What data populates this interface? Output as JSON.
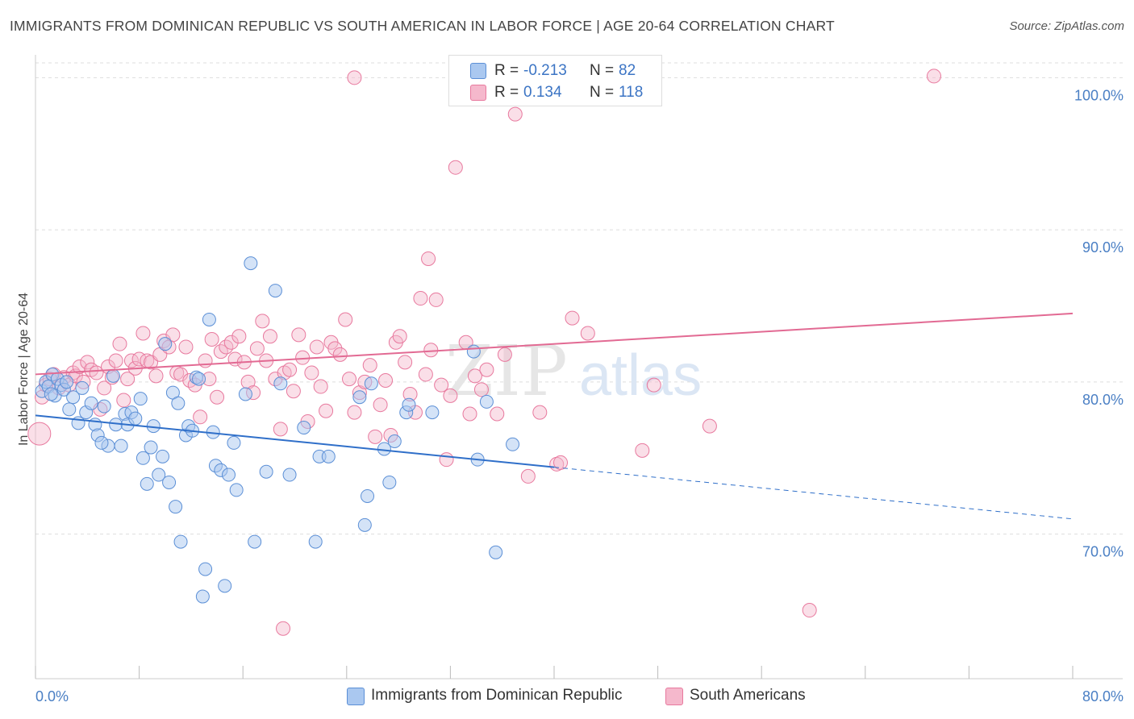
{
  "title": "IMMIGRANTS FROM DOMINICAN REPUBLIC VS SOUTH AMERICAN IN LABOR FORCE | AGE 20-64 CORRELATION CHART",
  "source": "Source: ZipAtlas.com",
  "watermark": {
    "zip": "ZIP",
    "atlas": "atlas"
  },
  "legend": {
    "rows": [
      {
        "r_label": "R =",
        "r_value": "-0.213",
        "n_label": "N =",
        "n_value": "82"
      },
      {
        "r_label": "R =",
        "r_value": "0.134",
        "n_label": "N =",
        "n_value": "118"
      }
    ]
  },
  "colors": {
    "blue_fill": "#aac8f0",
    "blue_stroke": "#5b8fd6",
    "blue_line": "#2f6fc9",
    "pink_fill": "#f5b8cc",
    "pink_stroke": "#e8799e",
    "pink_line": "#e26a93",
    "tick": "#4a7fc4",
    "grid": "#dddddd"
  },
  "chart_data": {
    "type": "scatter",
    "title": "IMMIGRANTS FROM DOMINICAN REPUBLIC VS SOUTH AMERICAN IN LABOR FORCE | AGE 20-64 CORRELATION CHART",
    "xlabel": "",
    "ylabel": "In Labor Force | Age 20-64",
    "xlim": [
      0,
      80
    ],
    "ylim": [
      60.5,
      101.5
    ],
    "x_tick_labels": [
      "0.0%",
      "80.0%"
    ],
    "y_ticks": [
      70,
      80,
      90,
      100
    ],
    "y_tick_labels": [
      "70.0%",
      "80.0%",
      "90.0%",
      "100.0%"
    ],
    "grid": true,
    "legend_position": "top-center",
    "series": [
      {
        "name": "Immigrants from Dominican Republic",
        "r": -0.213,
        "n": 82,
        "trend": {
          "x": [
            0,
            40
          ],
          "y": [
            77.8,
            74.4
          ],
          "dashed_to": [
            80,
            71.0
          ]
        },
        "points": [
          [
            0.5,
            79.4
          ],
          [
            0.8,
            80.0
          ],
          [
            1.0,
            79.7
          ],
          [
            1.3,
            80.5
          ],
          [
            1.5,
            79.1
          ],
          [
            1.7,
            80.2
          ],
          [
            2.0,
            79.8
          ],
          [
            2.2,
            79.5
          ],
          [
            2.6,
            78.2
          ],
          [
            2.9,
            79.0
          ],
          [
            3.3,
            77.3
          ],
          [
            3.6,
            79.6
          ],
          [
            3.9,
            78.0
          ],
          [
            4.3,
            78.6
          ],
          [
            4.6,
            77.2
          ],
          [
            4.8,
            76.5
          ],
          [
            5.3,
            78.4
          ],
          [
            5.6,
            75.8
          ],
          [
            6.0,
            80.4
          ],
          [
            6.2,
            77.2
          ],
          [
            6.6,
            75.8
          ],
          [
            6.9,
            77.9
          ],
          [
            7.1,
            77.2
          ],
          [
            7.4,
            78.0
          ],
          [
            7.7,
            77.6
          ],
          [
            8.1,
            78.9
          ],
          [
            8.3,
            75.0
          ],
          [
            8.6,
            73.3
          ],
          [
            8.9,
            75.7
          ],
          [
            9.1,
            77.1
          ],
          [
            9.5,
            73.9
          ],
          [
            9.8,
            75.1
          ],
          [
            10.0,
            82.5
          ],
          [
            10.3,
            73.4
          ],
          [
            10.6,
            79.3
          ],
          [
            10.8,
            71.8
          ],
          [
            11.0,
            78.6
          ],
          [
            11.2,
            69.5
          ],
          [
            11.6,
            76.5
          ],
          [
            11.8,
            77.1
          ],
          [
            12.1,
            76.8
          ],
          [
            12.4,
            80.3
          ],
          [
            12.6,
            80.2
          ],
          [
            12.9,
            65.9
          ],
          [
            13.1,
            67.7
          ],
          [
            13.4,
            84.1
          ],
          [
            13.7,
            76.7
          ],
          [
            13.9,
            74.5
          ],
          [
            14.3,
            74.2
          ],
          [
            14.6,
            66.6
          ],
          [
            14.9,
            73.9
          ],
          [
            15.3,
            76.0
          ],
          [
            15.5,
            72.9
          ],
          [
            16.2,
            79.2
          ],
          [
            16.6,
            87.8
          ],
          [
            16.9,
            69.5
          ],
          [
            17.8,
            74.1
          ],
          [
            18.5,
            86.0
          ],
          [
            18.9,
            79.9
          ],
          [
            19.6,
            73.9
          ],
          [
            20.7,
            77.0
          ],
          [
            21.6,
            69.5
          ],
          [
            21.9,
            75.1
          ],
          [
            22.6,
            75.1
          ],
          [
            25.0,
            79.0
          ],
          [
            25.4,
            70.6
          ],
          [
            25.6,
            72.5
          ],
          [
            25.9,
            79.9
          ],
          [
            26.9,
            75.6
          ],
          [
            27.3,
            73.4
          ],
          [
            27.7,
            76.1
          ],
          [
            28.6,
            78.0
          ],
          [
            28.8,
            78.5
          ],
          [
            30.6,
            78.0
          ],
          [
            33.8,
            82.0
          ],
          [
            34.1,
            74.9
          ],
          [
            34.8,
            78.7
          ],
          [
            35.5,
            68.8
          ],
          [
            36.8,
            75.9
          ],
          [
            1.2,
            79.2
          ],
          [
            2.4,
            80.0
          ],
          [
            5.1,
            76.0
          ]
        ]
      },
      {
        "name": "South Americans",
        "r": 0.134,
        "n": 118,
        "trend": {
          "x": [
            0,
            80
          ],
          "y": [
            80.5,
            84.5
          ]
        },
        "points": [
          [
            0.3,
            76.6
          ],
          [
            0.5,
            79.0
          ],
          [
            0.8,
            79.8
          ],
          [
            1.1,
            80.2
          ],
          [
            1.4,
            80.5
          ],
          [
            1.8,
            79.6
          ],
          [
            2.2,
            80.3
          ],
          [
            2.6,
            79.8
          ],
          [
            2.9,
            80.6
          ],
          [
            3.1,
            80.4
          ],
          [
            3.4,
            81.0
          ],
          [
            3.7,
            80.0
          ],
          [
            4.0,
            81.3
          ],
          [
            4.3,
            80.8
          ],
          [
            4.7,
            80.6
          ],
          [
            5.0,
            78.2
          ],
          [
            5.3,
            79.6
          ],
          [
            5.6,
            81.0
          ],
          [
            5.9,
            80.3
          ],
          [
            6.2,
            81.4
          ],
          [
            6.5,
            82.5
          ],
          [
            6.8,
            78.8
          ],
          [
            7.1,
            80.2
          ],
          [
            7.4,
            81.4
          ],
          [
            7.7,
            80.9
          ],
          [
            8.0,
            81.5
          ],
          [
            8.3,
            83.2
          ],
          [
            8.6,
            81.4
          ],
          [
            8.9,
            81.3
          ],
          [
            9.3,
            80.4
          ],
          [
            9.6,
            81.8
          ],
          [
            9.9,
            82.7
          ],
          [
            10.3,
            82.3
          ],
          [
            10.6,
            83.1
          ],
          [
            10.9,
            80.6
          ],
          [
            11.2,
            80.5
          ],
          [
            11.6,
            82.3
          ],
          [
            11.9,
            80.1
          ],
          [
            12.3,
            79.8
          ],
          [
            12.7,
            77.7
          ],
          [
            13.1,
            81.4
          ],
          [
            13.4,
            80.2
          ],
          [
            13.6,
            82.8
          ],
          [
            14.0,
            79.0
          ],
          [
            14.3,
            82.0
          ],
          [
            14.7,
            82.3
          ],
          [
            15.1,
            82.6
          ],
          [
            15.4,
            81.5
          ],
          [
            15.7,
            83.0
          ],
          [
            16.1,
            81.3
          ],
          [
            16.4,
            80.0
          ],
          [
            16.8,
            79.3
          ],
          [
            17.1,
            82.2
          ],
          [
            17.5,
            84.0
          ],
          [
            17.8,
            81.4
          ],
          [
            18.1,
            83.0
          ],
          [
            18.5,
            80.2
          ],
          [
            18.9,
            76.9
          ],
          [
            19.2,
            80.6
          ],
          [
            19.6,
            80.8
          ],
          [
            19.9,
            79.4
          ],
          [
            20.3,
            83.1
          ],
          [
            20.6,
            81.6
          ],
          [
            21.0,
            77.4
          ],
          [
            21.3,
            80.6
          ],
          [
            21.7,
            82.3
          ],
          [
            22.0,
            79.7
          ],
          [
            22.4,
            78.1
          ],
          [
            22.8,
            82.6
          ],
          [
            23.1,
            82.2
          ],
          [
            23.5,
            81.8
          ],
          [
            23.9,
            84.1
          ],
          [
            24.2,
            80.2
          ],
          [
            24.6,
            78.0
          ],
          [
            25.0,
            79.3
          ],
          [
            25.4,
            80.0
          ],
          [
            25.8,
            81.1
          ],
          [
            26.2,
            76.4
          ],
          [
            26.6,
            78.5
          ],
          [
            27.0,
            80.1
          ],
          [
            27.4,
            76.5
          ],
          [
            27.8,
            82.6
          ],
          [
            28.1,
            83.0
          ],
          [
            28.5,
            81.3
          ],
          [
            28.9,
            79.2
          ],
          [
            29.3,
            78.0
          ],
          [
            29.7,
            85.5
          ],
          [
            30.1,
            80.5
          ],
          [
            30.5,
            82.1
          ],
          [
            30.9,
            85.4
          ],
          [
            31.3,
            79.8
          ],
          [
            31.7,
            74.9
          ],
          [
            32.0,
            79.1
          ],
          [
            32.4,
            94.1
          ],
          [
            32.8,
            100.0
          ],
          [
            33.2,
            82.6
          ],
          [
            33.5,
            77.9
          ],
          [
            33.9,
            80.4
          ],
          [
            34.4,
            79.5
          ],
          [
            34.8,
            80.8
          ],
          [
            35.6,
            77.9
          ],
          [
            36.2,
            81.8
          ],
          [
            37.0,
            97.6
          ],
          [
            38.0,
            73.8
          ],
          [
            38.9,
            78.0
          ],
          [
            40.2,
            74.6
          ],
          [
            40.5,
            74.7
          ],
          [
            41.4,
            84.2
          ],
          [
            42.6,
            83.2
          ],
          [
            46.8,
            75.5
          ],
          [
            47.7,
            79.8
          ],
          [
            52.0,
            77.1
          ],
          [
            59.7,
            65.0
          ],
          [
            69.3,
            100.1
          ],
          [
            19.1,
            63.8
          ],
          [
            24.6,
            100.0
          ],
          [
            35.0,
            100.0
          ],
          [
            30.3,
            88.1
          ]
        ]
      }
    ]
  },
  "bottom_legend": [
    {
      "label": "Immigrants from Dominican Republic"
    },
    {
      "label": "South Americans"
    }
  ]
}
